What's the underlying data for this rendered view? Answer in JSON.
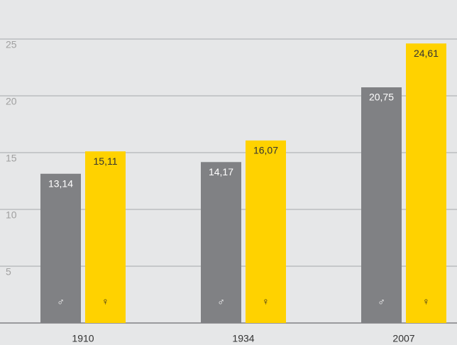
{
  "chart_data": {
    "type": "bar",
    "categories": [
      "1910",
      "1934",
      "2007"
    ],
    "series": [
      {
        "name": "♂",
        "color": "#808184",
        "values": [
          13.14,
          14.17,
          20.75
        ],
        "value_labels": [
          "13,14",
          "14,17",
          "20,75"
        ]
      },
      {
        "name": "♀",
        "color": "#ffd200",
        "values": [
          15.11,
          16.07,
          24.61
        ],
        "value_labels": [
          "15,11",
          "16,07",
          "24,61"
        ]
      }
    ],
    "ylim": [
      0,
      25
    ],
    "yticks": [
      5,
      10,
      15,
      20,
      25
    ],
    "grid": true
  }
}
